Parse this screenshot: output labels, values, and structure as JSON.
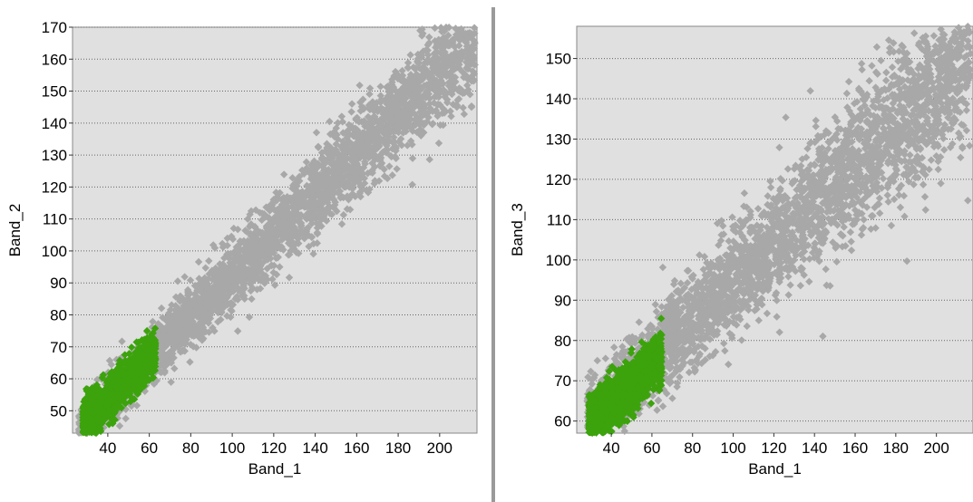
{
  "colors": {
    "plot_background": "#e0e0e0",
    "gray_series": "#a8a8a8",
    "green_series": "#3ca30c",
    "grid": "#666666",
    "divider": "#9a9a9a"
  },
  "chart_data": [
    {
      "type": "scatter",
      "xlabel": "Band_1",
      "ylabel": "Band_2",
      "xlim": [
        23,
        218
      ],
      "ylim": [
        43,
        170
      ],
      "xticks": [
        40,
        60,
        80,
        100,
        120,
        140,
        160,
        180,
        200
      ],
      "yticks": [
        50,
        60,
        70,
        80,
        90,
        100,
        110,
        120,
        130,
        140,
        150,
        160,
        170
      ],
      "grid": "horizontal dotted",
      "series": [
        {
          "color": "#a8a8a8",
          "distribution": {
            "x_range": [
              26,
              217
            ],
            "intercept": 28,
            "slope": 0.64,
            "spread": 5,
            "count": 3200,
            "sample_points": [
              [
                30,
                47
              ],
              [
                60,
                66
              ],
              [
                100,
                92
              ],
              [
                140,
                118
              ],
              [
                180,
                143
              ],
              [
                210,
                165
              ]
            ]
          }
        },
        {
          "color": "#3ca30c",
          "distribution": {
            "x_range": [
              28,
              63
            ],
            "intercept": 28,
            "slope": 0.64,
            "spread": 4,
            "count": 1400,
            "sample_points": [
              [
                30,
                46
              ],
              [
                40,
                52
              ],
              [
                50,
                59
              ],
              [
                60,
                64
              ]
            ]
          }
        }
      ]
    },
    {
      "type": "scatter",
      "xlabel": "Band_1",
      "ylabel": "Band_3",
      "xlim": [
        23,
        218
      ],
      "ylim": [
        57,
        158
      ],
      "xticks": [
        40,
        60,
        80,
        100,
        120,
        140,
        160,
        180,
        200
      ],
      "yticks": [
        60,
        70,
        80,
        90,
        100,
        110,
        120,
        130,
        140,
        150
      ],
      "grid": "horizontal dotted",
      "series": [
        {
          "color": "#a8a8a8",
          "distribution": {
            "x_range": [
              28,
              217
            ],
            "intercept": 47,
            "slope": 0.48,
            "spread": 6,
            "count": 3200,
            "sample_points": [
              [
                30,
                60
              ],
              [
                60,
                78
              ],
              [
                100,
                99
              ],
              [
                140,
                118
              ],
              [
                180,
                136
              ],
              [
                210,
                150
              ]
            ]
          }
        },
        {
          "color": "#3ca30c",
          "distribution": {
            "x_range": [
              29,
              65
            ],
            "intercept": 45,
            "slope": 0.48,
            "spread": 4,
            "count": 1400,
            "sample_points": [
              [
                30,
                60
              ],
              [
                40,
                65
              ],
              [
                50,
                69
              ],
              [
                62,
                73
              ]
            ]
          }
        }
      ]
    }
  ]
}
